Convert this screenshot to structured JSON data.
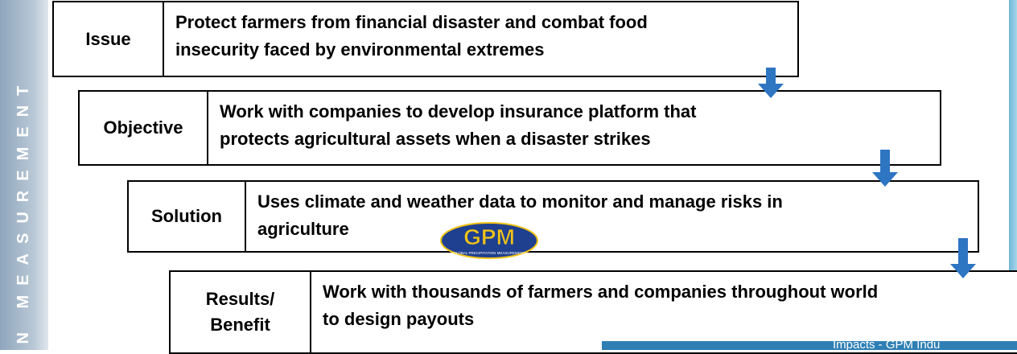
{
  "sidebar": "ON MEASUREMENT",
  "rows": [
    {
      "label": "Issue",
      "lines": [
        "Protect farmers from financial disaster and combat food",
        "insecurity faced by environmental extremes"
      ]
    },
    {
      "label": "Objective",
      "lines": [
        "Work with companies to develop insurance platform that",
        "protects agricultural assets when a disaster strikes"
      ]
    },
    {
      "label": "Solution",
      "lines": [
        "Uses climate and weather data to monitor and manage risks in",
        "agriculture"
      ]
    },
    {
      "label": "Results/ Benefit",
      "lines": [
        "Work with thousands of farmers and companies throughout world",
        "to design payouts"
      ]
    }
  ],
  "logo": {
    "title": "GPM",
    "subtitle": "GLOBAL PRECIPITATION MEASUREMENT"
  },
  "footer": "Impacts - GPM Indu"
}
